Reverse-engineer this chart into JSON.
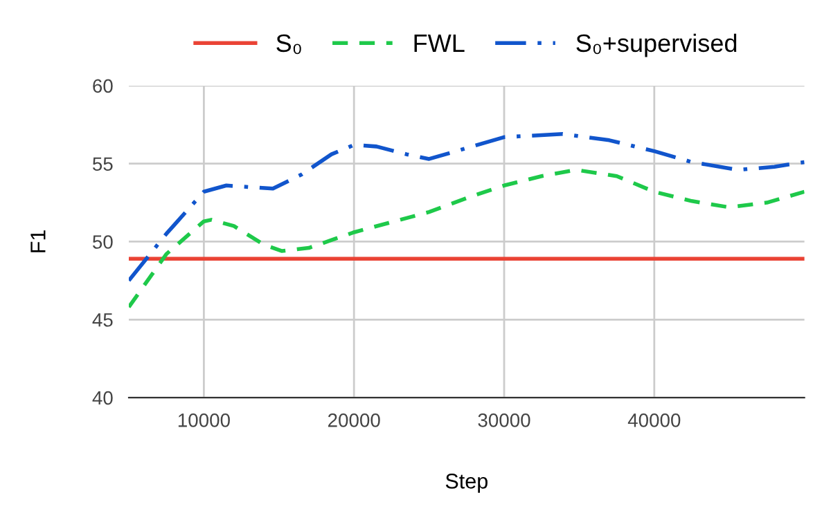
{
  "chart_data": {
    "type": "line",
    "xlabel": "Step",
    "ylabel": "F1",
    "xlim": [
      5000,
      50000
    ],
    "ylim": [
      40,
      60
    ],
    "xticks": [
      10000,
      20000,
      30000,
      40000
    ],
    "yticks": [
      40,
      45,
      50,
      55,
      60
    ],
    "grid": true,
    "legend": "top",
    "series": [
      {
        "name": "S₀",
        "color": "#ea4335",
        "line_style": "solid",
        "x": [
          5000,
          50000
        ],
        "values": [
          48.9,
          48.9
        ]
      },
      {
        "name": "FWL",
        "color": "#1ec94a",
        "line_style": "dashed",
        "x": [
          5000,
          7500,
          10000,
          10500,
          12000,
          14000,
          15200,
          17000,
          20000,
          25000,
          27800,
          30000,
          32500,
          34800,
          37500,
          40000,
          42500,
          45000,
          47500,
          50000
        ],
        "values": [
          45.8,
          49.2,
          51.3,
          51.4,
          51.0,
          49.8,
          49.4,
          49.6,
          50.6,
          51.9,
          52.9,
          53.6,
          54.2,
          54.6,
          54.2,
          53.2,
          52.6,
          52.2,
          52.5,
          53.2
        ]
      },
      {
        "name": "S₀+supervised",
        "color": "#1155cc",
        "line_style": "dashdot",
        "x": [
          5000,
          7500,
          10000,
          11500,
          13000,
          14600,
          16500,
          18500,
          20000,
          21500,
          23500,
          25000,
          26800,
          30000,
          33900,
          37000,
          40000,
          42500,
          45600,
          48000,
          50000
        ],
        "values": [
          47.5,
          50.5,
          53.2,
          53.6,
          53.5,
          53.4,
          54.3,
          55.6,
          56.2,
          56.1,
          55.6,
          55.3,
          55.8,
          56.7,
          56.9,
          56.5,
          55.8,
          55.1,
          54.6,
          54.8,
          55.1
        ]
      }
    ]
  }
}
